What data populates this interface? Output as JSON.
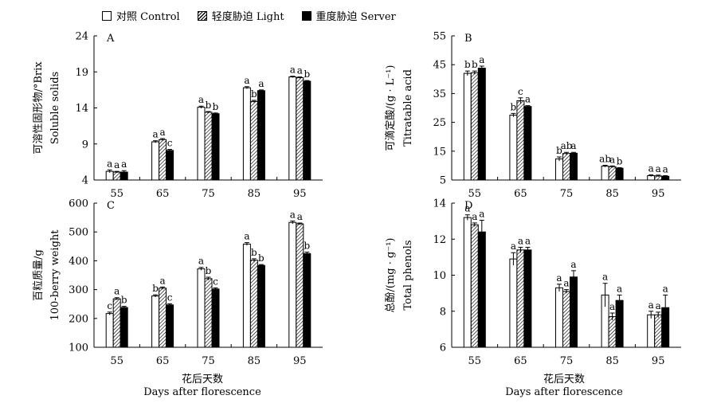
{
  "legend": {
    "control": "对照 Control",
    "light": "轻度胁迫 Light",
    "severe": "重度胁迫 Server"
  },
  "xaxis": {
    "zh": "花后天数",
    "en": "Days after florescence"
  },
  "colors": {
    "control": "#ffffff",
    "light": "hatched",
    "severe": "#000000"
  },
  "chart_data": [
    {
      "panel": "A",
      "type": "bar",
      "categories": [
        "55",
        "65",
        "75",
        "85",
        "95"
      ],
      "ylabel_zh": "可溶性固形物/°Brix",
      "ylabel_en": "Soluble solids",
      "ylim": [
        4,
        24
      ],
      "yticks": [
        4,
        9,
        14,
        19,
        24
      ],
      "series": [
        {
          "name": "对照 Control",
          "values": [
            5.2,
            9.3,
            14.1,
            16.8,
            18.3
          ],
          "errors": [
            0.2,
            0.15,
            0.15,
            0.15,
            0.1
          ],
          "letters": [
            "a",
            "a",
            "a",
            "a",
            "a"
          ]
        },
        {
          "name": "轻度胁迫 Light",
          "values": [
            5.1,
            9.6,
            13.4,
            14.9,
            18.2
          ],
          "errors": [
            0.1,
            0.15,
            0.1,
            0.15,
            0.1
          ],
          "letters": [
            "a",
            "a",
            "b",
            "b",
            "a"
          ]
        },
        {
          "name": "重度胁迫 Server",
          "values": [
            5.1,
            8.1,
            13.2,
            16.4,
            17.7
          ],
          "errors": [
            0.2,
            0.15,
            0.1,
            0.1,
            0.1
          ],
          "letters": [
            "a",
            "c",
            "b",
            "a",
            "b"
          ]
        }
      ]
    },
    {
      "panel": "B",
      "type": "bar",
      "categories": [
        "55",
        "65",
        "75",
        "85",
        "95"
      ],
      "ylabel_zh": "可滴定酸/(g · L⁻¹)",
      "ylabel_en": "Titratable acid",
      "ylim": [
        5,
        55
      ],
      "yticks": [
        5,
        15,
        25,
        35,
        45,
        55
      ],
      "series": [
        {
          "name": "对照 Control",
          "values": [
            42,
            27.5,
            12.3,
            9.8,
            6.5
          ],
          "errors": [
            0.8,
            0.6,
            0.7,
            0.3,
            0.3
          ],
          "letters": [
            "b",
            "b",
            "b",
            "ab",
            "a"
          ]
        },
        {
          "name": "轻度胁迫 Light",
          "values": [
            42.2,
            32.5,
            14.2,
            9.6,
            6.4
          ],
          "errors": [
            0.6,
            1.0,
            0.4,
            0.3,
            0.3
          ],
          "letters": [
            "b",
            "c",
            "ab",
            "a",
            "a"
          ]
        },
        {
          "name": "重度胁迫 Server",
          "values": [
            43.8,
            30.5,
            14.3,
            9.1,
            6.3
          ],
          "errors": [
            0.7,
            0.3,
            0.3,
            0.2,
            0.2
          ],
          "letters": [
            "a",
            "a",
            "a",
            "b",
            "a"
          ]
        }
      ]
    },
    {
      "panel": "C",
      "type": "bar",
      "categories": [
        "55",
        "65",
        "75",
        "85",
        "95"
      ],
      "ylabel_zh": "百粒质量/g",
      "ylabel_en": "100-berry weight",
      "ylim": [
        100,
        600
      ],
      "yticks": [
        100,
        200,
        300,
        400,
        500,
        600
      ],
      "series": [
        {
          "name": "对照 Control",
          "values": [
            217,
            278,
            372,
            458,
            533
          ],
          "errors": [
            5,
            4,
            5,
            5,
            5
          ],
          "letters": [
            "c",
            "b",
            "a",
            "a",
            "a"
          ]
        },
        {
          "name": "轻度胁迫 Light",
          "values": [
            268,
            305,
            338,
            402,
            528
          ],
          "errors": [
            4,
            4,
            5,
            5,
            3
          ],
          "letters": [
            "a",
            "a",
            "b",
            "b",
            "a"
          ]
        },
        {
          "name": "重度胁迫 Server",
          "values": [
            238,
            247,
            302,
            384,
            425
          ],
          "errors": [
            4,
            4,
            4,
            3,
            5
          ],
          "letters": [
            "b",
            "c",
            "c",
            "b",
            "b"
          ]
        }
      ]
    },
    {
      "panel": "D",
      "type": "bar",
      "categories": [
        "55",
        "65",
        "75",
        "85",
        "95"
      ],
      "ylabel_zh": "总酚/(mg · g⁻¹)",
      "ylabel_en": "Total phenols",
      "ylim": [
        6,
        14
      ],
      "yticks": [
        6,
        8,
        10,
        12,
        14
      ],
      "series": [
        {
          "name": "对照 Control",
          "values": [
            13.2,
            10.9,
            9.3,
            8.9,
            7.8
          ],
          "errors": [
            0.15,
            0.35,
            0.2,
            0.65,
            0.2
          ],
          "letters": [
            "a",
            "a",
            "a",
            "a",
            "a"
          ]
        },
        {
          "name": "轻度胁迫 Light",
          "values": [
            12.8,
            11.4,
            9.1,
            7.7,
            7.8
          ],
          "errors": [
            0.1,
            0.15,
            0.1,
            0.2,
            0.15
          ],
          "letters": [
            "a",
            "a",
            "a",
            "a",
            "a"
          ]
        },
        {
          "name": "重度胁迫 Server",
          "values": [
            12.4,
            11.4,
            9.9,
            8.6,
            8.2
          ],
          "errors": [
            0.65,
            0.15,
            0.35,
            0.3,
            0.7
          ],
          "letters": [
            "a",
            "a",
            "a",
            "a",
            "a"
          ]
        }
      ]
    }
  ]
}
